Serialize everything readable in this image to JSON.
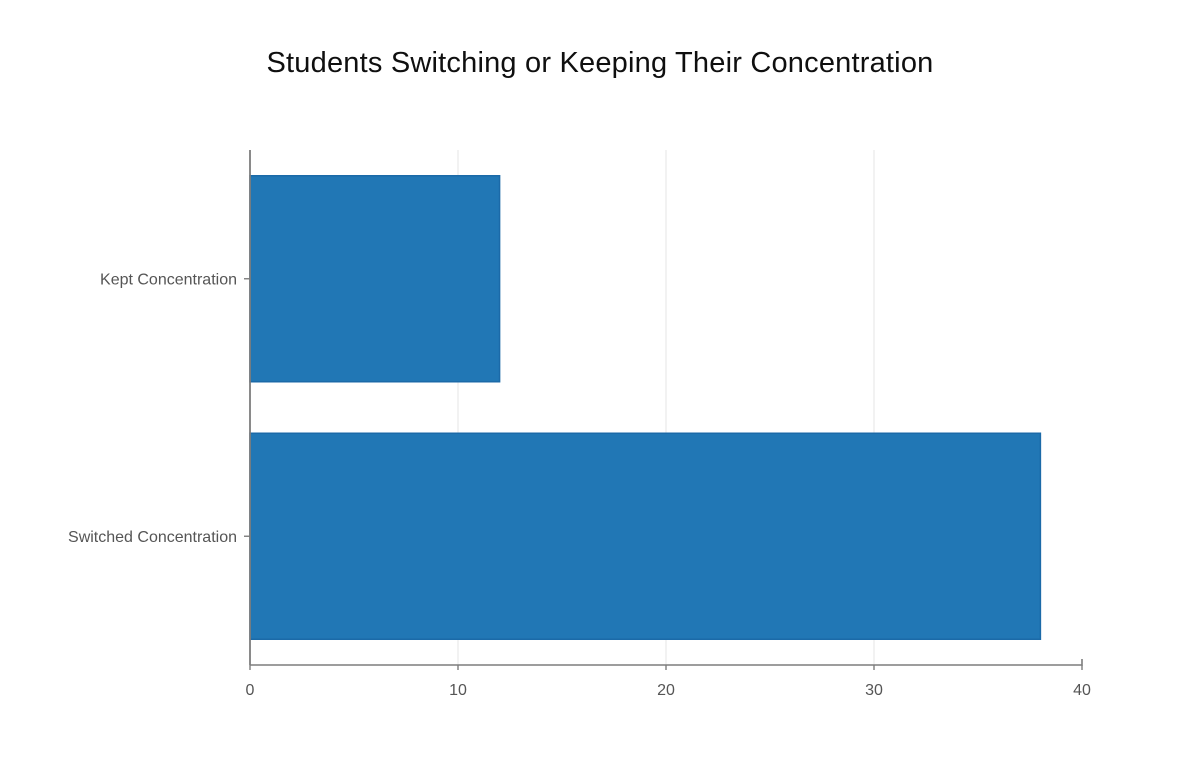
{
  "chart_data": {
    "type": "bar",
    "orientation": "horizontal",
    "title": "Students Switching or Keeping Their Concentration",
    "categories": [
      "Kept Concentration",
      "Switched Concentration"
    ],
    "values": [
      12,
      38
    ],
    "xlabel": "",
    "ylabel": "",
    "xlim": [
      0,
      40
    ],
    "xticks": [
      "0",
      "10",
      "20",
      "30",
      "40"
    ],
    "xtick_values": [
      0,
      10,
      20,
      30,
      40
    ],
    "gridline_values": [
      10,
      20,
      30
    ],
    "grid": "vertical",
    "legend_position": "none",
    "colors": {
      "bar_fill": "#2177b5",
      "bar_edge": "#1b6aa8",
      "grid_line": "#ededed",
      "axis_line": "#7d7d7d",
      "tick_label": "#555555",
      "title_text": "#0f0f0f",
      "background": "#ffffff"
    }
  }
}
